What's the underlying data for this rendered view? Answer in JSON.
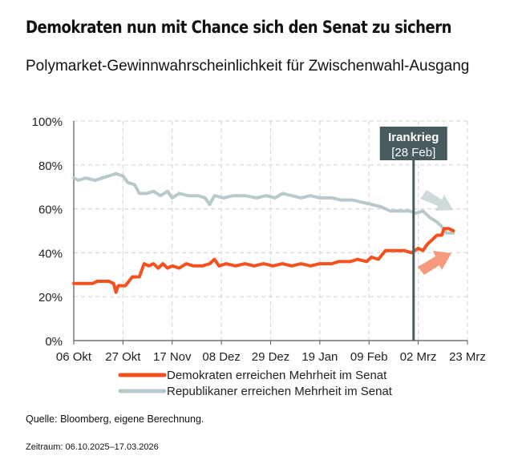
{
  "title": "Demokraten nun mit Chance sich den Senat zu sichern",
  "subtitle": "Polymarket-Gewinnwahrscheinlichkeit für Zwischenwahl-Ausgang",
  "source": "Quelle: Bloomberg, eigene Berechnung.",
  "period": "Zeitraum: 06.10.2025–17.03.2026",
  "colors": {
    "dem": "#f4511e",
    "rep": "#b9c8cb",
    "annotation": "#4a5b60",
    "grid": "#d9d9d9"
  },
  "chart_data": {
    "type": "line",
    "x_range": [
      "2025-10-06",
      "2026-03-23"
    ],
    "ylim": [
      0,
      100
    ],
    "y_unit": "%",
    "y_ticks": [
      0,
      20,
      40,
      60,
      80,
      100
    ],
    "y_tick_labels": [
      "0%",
      "20%",
      "40%",
      "60%",
      "80%",
      "100%"
    ],
    "x_ticks": [
      "2025-10-06",
      "2025-10-27",
      "2025-11-17",
      "2025-12-08",
      "2025-12-29",
      "2026-01-19",
      "2026-02-09",
      "2026-03-02",
      "2026-03-23"
    ],
    "x_tick_labels": [
      "06 Okt",
      "27 Okt",
      "17 Nov",
      "08 Dez",
      "29 Dez",
      "19 Jan",
      "09 Feb",
      "02 Mrz",
      "23 Mrz"
    ],
    "grid": true,
    "legend_position": "bottom",
    "series": [
      {
        "name": "Demokraten erreichen Mehrheit im Senat",
        "color": "#f4511e",
        "points": [
          [
            "2025-10-06",
            26
          ],
          [
            "2025-10-14",
            26
          ],
          [
            "2025-10-16",
            27
          ],
          [
            "2025-10-21",
            27
          ],
          [
            "2025-10-23",
            26
          ],
          [
            "2025-10-24",
            22
          ],
          [
            "2025-10-25",
            25
          ],
          [
            "2025-10-28",
            25
          ],
          [
            "2025-10-31",
            29
          ],
          [
            "2025-11-03",
            29
          ],
          [
            "2025-11-05",
            35
          ],
          [
            "2025-11-07",
            34
          ],
          [
            "2025-11-09",
            35
          ],
          [
            "2025-11-11",
            33
          ],
          [
            "2025-11-13",
            35
          ],
          [
            "2025-11-15",
            33
          ],
          [
            "2025-11-17",
            34
          ],
          [
            "2025-11-20",
            33
          ],
          [
            "2025-11-23",
            35
          ],
          [
            "2025-11-26",
            34
          ],
          [
            "2025-11-30",
            34
          ],
          [
            "2025-12-03",
            35
          ],
          [
            "2025-12-05",
            37
          ],
          [
            "2025-12-07",
            34
          ],
          [
            "2025-12-10",
            35
          ],
          [
            "2025-12-14",
            34
          ],
          [
            "2025-12-18",
            35
          ],
          [
            "2025-12-22",
            34
          ],
          [
            "2025-12-26",
            35
          ],
          [
            "2025-12-30",
            34
          ],
          [
            "2026-01-03",
            35
          ],
          [
            "2026-01-07",
            34
          ],
          [
            "2026-01-11",
            35
          ],
          [
            "2026-01-15",
            34
          ],
          [
            "2026-01-19",
            35
          ],
          [
            "2026-01-24",
            35
          ],
          [
            "2026-01-27",
            36
          ],
          [
            "2026-02-01",
            36
          ],
          [
            "2026-02-04",
            37
          ],
          [
            "2026-02-08",
            36
          ],
          [
            "2026-02-10",
            38
          ],
          [
            "2026-02-13",
            37
          ],
          [
            "2026-02-16",
            41
          ],
          [
            "2026-02-20",
            41
          ],
          [
            "2026-02-24",
            41
          ],
          [
            "2026-02-27",
            40
          ],
          [
            "2026-03-02",
            42
          ],
          [
            "2026-03-04",
            41
          ],
          [
            "2026-03-06",
            44
          ],
          [
            "2026-03-08",
            46
          ],
          [
            "2026-03-10",
            48
          ],
          [
            "2026-03-12",
            48
          ],
          [
            "2026-03-13",
            51
          ],
          [
            "2026-03-15",
            51
          ],
          [
            "2026-03-17",
            50
          ]
        ]
      },
      {
        "name": "Republikaner erreichen Mehrheit im Senat",
        "color": "#b9c8cb",
        "points": [
          [
            "2025-10-06",
            74
          ],
          [
            "2025-10-08",
            73
          ],
          [
            "2025-10-11",
            74
          ],
          [
            "2025-10-15",
            73
          ],
          [
            "2025-10-18",
            74
          ],
          [
            "2025-10-21",
            75
          ],
          [
            "2025-10-24",
            76
          ],
          [
            "2025-10-27",
            75
          ],
          [
            "2025-10-29",
            72
          ],
          [
            "2025-11-01",
            71
          ],
          [
            "2025-11-03",
            67
          ],
          [
            "2025-11-06",
            67
          ],
          [
            "2025-11-09",
            68
          ],
          [
            "2025-11-12",
            66
          ],
          [
            "2025-11-15",
            68
          ],
          [
            "2025-11-17",
            65
          ],
          [
            "2025-11-20",
            67
          ],
          [
            "2025-11-24",
            66
          ],
          [
            "2025-11-28",
            66
          ],
          [
            "2025-12-01",
            65
          ],
          [
            "2025-12-03",
            62
          ],
          [
            "2025-12-05",
            66
          ],
          [
            "2025-12-09",
            65
          ],
          [
            "2025-12-13",
            66
          ],
          [
            "2025-12-18",
            66
          ],
          [
            "2025-12-23",
            65
          ],
          [
            "2025-12-27",
            66
          ],
          [
            "2025-12-31",
            65
          ],
          [
            "2026-01-03",
            67
          ],
          [
            "2026-01-07",
            66
          ],
          [
            "2026-01-11",
            65
          ],
          [
            "2026-01-15",
            66
          ],
          [
            "2026-01-19",
            65
          ],
          [
            "2026-01-24",
            65
          ],
          [
            "2026-01-28",
            64
          ],
          [
            "2026-02-02",
            64
          ],
          [
            "2026-02-06",
            63
          ],
          [
            "2026-02-10",
            62
          ],
          [
            "2026-02-14",
            61
          ],
          [
            "2026-02-18",
            59
          ],
          [
            "2026-02-22",
            59
          ],
          [
            "2026-02-26",
            59
          ],
          [
            "2026-03-01",
            58
          ],
          [
            "2026-03-04",
            59
          ],
          [
            "2026-03-07",
            56
          ],
          [
            "2026-03-10",
            54
          ],
          [
            "2026-03-12",
            52
          ],
          [
            "2026-03-14",
            49
          ],
          [
            "2026-03-17",
            49
          ]
        ]
      }
    ],
    "annotations": [
      {
        "date": "2026-02-28",
        "label": "Irankrieg",
        "sublabel": "[28 Feb]"
      }
    ]
  }
}
